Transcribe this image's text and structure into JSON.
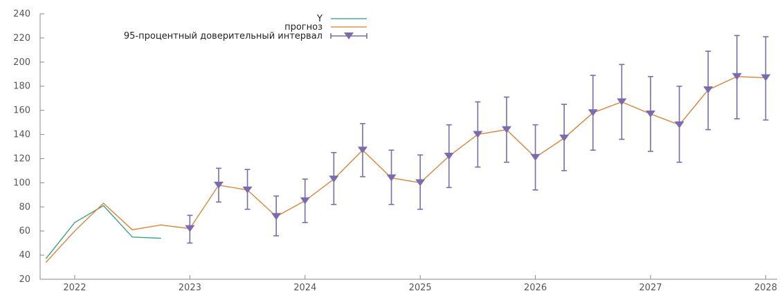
{
  "chart_data": {
    "type": "line",
    "title": "",
    "xlabel": "",
    "ylabel": "",
    "ylim": [
      20,
      240
    ],
    "xlim": [
      2021.7,
      2028.1
    ],
    "yticks": [
      20,
      40,
      60,
      80,
      100,
      120,
      140,
      160,
      180,
      200,
      220,
      240
    ],
    "xticks": [
      2022,
      2023,
      2024,
      2025,
      2026,
      2027,
      2028
    ],
    "grid": false,
    "legend_position": "top",
    "series": [
      {
        "name": "Y",
        "color": "#2e9e7a",
        "x": [
          2021.75,
          2022.0,
          2022.25,
          2022.5,
          2022.75
        ],
        "y": [
          37,
          67,
          81,
          55,
          54
        ]
      },
      {
        "name": "прогноз",
        "color": "#e07a2a",
        "x": [
          2021.75,
          2022.0,
          2022.25,
          2022.5,
          2022.75,
          2023.0,
          2023.25,
          2023.5,
          2023.75,
          2024.0,
          2024.25,
          2024.5,
          2024.75,
          2025.0,
          2025.25,
          2025.5,
          2025.75,
          2026.0,
          2026.25,
          2026.5,
          2026.75,
          2027.0,
          2027.25,
          2027.5,
          2027.75,
          2028.0
        ],
        "y": [
          34,
          60,
          83,
          61,
          65,
          62,
          98,
          94,
          72,
          85,
          103,
          127,
          104,
          100,
          122,
          140,
          144,
          121,
          137,
          158,
          167,
          157,
          148,
          177,
          188,
          187
        ]
      },
      {
        "name": "95-процентный доверительный интервал",
        "color": "#7a6bb0",
        "x": [
          2023.0,
          2023.25,
          2023.5,
          2023.75,
          2024.0,
          2024.25,
          2024.5,
          2024.75,
          2025.0,
          2025.25,
          2025.5,
          2025.75,
          2026.0,
          2026.25,
          2026.5,
          2026.75,
          2027.0,
          2027.25,
          2027.5,
          2027.75,
          2028.0
        ],
        "y": [
          62,
          98,
          94,
          72,
          85,
          103,
          127,
          104,
          100,
          122,
          140,
          144,
          121,
          137,
          158,
          167,
          157,
          148,
          177,
          188,
          187
        ],
        "low": [
          50,
          84,
          78,
          56,
          67,
          82,
          105,
          82,
          78,
          96,
          113,
          117,
          94,
          110,
          127,
          136,
          126,
          117,
          144,
          153,
          152
        ],
        "high": [
          73,
          112,
          111,
          89,
          103,
          125,
          149,
          127,
          123,
          148,
          167,
          171,
          148,
          165,
          189,
          198,
          188,
          180,
          209,
          222,
          221
        ]
      }
    ]
  }
}
